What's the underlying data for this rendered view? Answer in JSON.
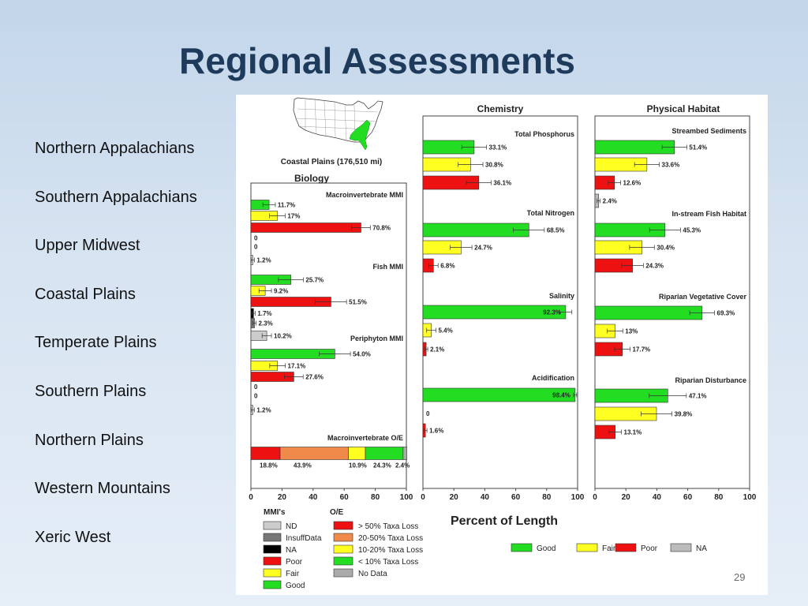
{
  "slide": {
    "title": "Regional Assessments",
    "slide_number": "29"
  },
  "regions": [
    "Northern Appalachians",
    "Southern Appalachians",
    "Upper Midwest",
    "Coastal Plains",
    "Temperate Plains",
    "Southern Plains",
    "Northern Plains",
    "Western Mountains",
    "Xeric West"
  ],
  "map": {
    "caption": "Coastal Plains (176,510 mi)",
    "highlight_color": "#22dd22"
  },
  "colors": {
    "good": "#22dd22",
    "fair": "#ffff22",
    "poor": "#ee1111",
    "na": "#bbbbbb",
    "nd": "#cccccc",
    "insuff": "#777777",
    "na_black": "#000000",
    "oe_loss50": "#ee1111",
    "oe_loss20_50": "#f08a4b",
    "oe_loss10_20": "#ffff22",
    "oe_loss10": "#22dd22",
    "oe_nodata": "#aaaaaa"
  },
  "chart_data": {
    "type": "bar",
    "xlabel": "Percent of Length",
    "xlim": [
      0,
      100
    ],
    "x_ticks": [
      "0",
      "20",
      "40",
      "60",
      "80",
      "100"
    ],
    "panels": [
      {
        "title": "Biology",
        "groups": [
          {
            "title": "Macroinvertebrate MMI",
            "bars": [
              {
                "cls": "good",
                "value": 11.7,
                "label": "11.7%",
                "err": 4
              },
              {
                "cls": "fair",
                "value": 17,
                "label": "17%",
                "err": 5
              },
              {
                "cls": "poor",
                "value": 70.8,
                "label": "70.8%",
                "err": 6
              },
              {
                "cls": "na_black",
                "value": 0,
                "label": "0"
              },
              {
                "cls": "na_black",
                "value": 0,
                "label": "0"
              },
              {
                "cls": "nd",
                "value": 1.2,
                "label": "1.2%",
                "err": 1
              }
            ]
          },
          {
            "title": "Fish MMI",
            "bars": [
              {
                "cls": "good",
                "value": 25.7,
                "label": "25.7%",
                "err": 8
              },
              {
                "cls": "fair",
                "value": 9.2,
                "label": "9.2%",
                "err": 4
              },
              {
                "cls": "poor",
                "value": 51.5,
                "label": "51.5%",
                "err": 10
              },
              {
                "cls": "na_black",
                "value": 1.7,
                "label": "1.7%",
                "err": 1
              },
              {
                "cls": "insuff",
                "value": 2.3,
                "label": "2.3%",
                "err": 1
              },
              {
                "cls": "nd",
                "value": 10.2,
                "label": "10.2%",
                "err": 3
              }
            ]
          },
          {
            "title": "Periphyton MMI",
            "bars": [
              {
                "cls": "good",
                "value": 54.0,
                "label": "54.0%",
                "err": 10
              },
              {
                "cls": "fair",
                "value": 17.1,
                "label": "17.1%",
                "err": 5
              },
              {
                "cls": "poor",
                "value": 27.6,
                "label": "27.6%",
                "err": 6
              },
              {
                "cls": "na_black",
                "value": 0,
                "label": "0"
              },
              {
                "cls": "na_black",
                "value": 0,
                "label": "0"
              },
              {
                "cls": "nd",
                "value": 1.2,
                "label": "1.2%",
                "err": 1
              }
            ]
          },
          {
            "title": "Macroinvertebrate O/E",
            "stacked": [
              {
                "cls": "oe_loss50",
                "value": 18.8,
                "label": "18.8%"
              },
              {
                "cls": "oe_loss20_50",
                "value": 43.9,
                "label": "43.9%"
              },
              {
                "cls": "oe_loss10_20",
                "value": 10.9,
                "label": "10.9%"
              },
              {
                "cls": "oe_loss10",
                "value": 24.3,
                "label": "24.3%"
              },
              {
                "cls": "oe_nodata",
                "value": 2.4,
                "label": "2.4%"
              }
            ]
          }
        ]
      },
      {
        "title": "Chemistry",
        "groups": [
          {
            "title": "Total Phosphorus",
            "bars": [
              {
                "cls": "good",
                "value": 33.1,
                "label": "33.1%",
                "err": 8
              },
              {
                "cls": "fair",
                "value": 30.8,
                "label": "30.8%",
                "err": 8
              },
              {
                "cls": "poor",
                "value": 36.1,
                "label": "36.1%",
                "err": 8
              }
            ]
          },
          {
            "title": "Total Nitrogen",
            "bars": [
              {
                "cls": "good",
                "value": 68.5,
                "label": "68.5%",
                "err": 10
              },
              {
                "cls": "fair",
                "value": 24.7,
                "label": "24.7%",
                "err": 7
              },
              {
                "cls": "poor",
                "value": 6.8,
                "label": "6.8%",
                "err": 3
              }
            ]
          },
          {
            "title": "Salinity",
            "bars": [
              {
                "cls": "good",
                "value": 92.3,
                "label": "92.3%",
                "err": 4,
                "label_inside": true
              },
              {
                "cls": "fair",
                "value": 5.4,
                "label": "5.4%",
                "err": 3
              },
              {
                "cls": "poor",
                "value": 2.1,
                "label": "2.1%",
                "err": 1
              }
            ]
          },
          {
            "title": "Acidification",
            "bars": [
              {
                "cls": "good",
                "value": 98.4,
                "label": "98.4%",
                "err": 1,
                "label_inside": true
              },
              {
                "cls": "fair",
                "value": 0,
                "label": "0"
              },
              {
                "cls": "poor",
                "value": 1.6,
                "label": "1.6%",
                "err": 1
              }
            ]
          }
        ]
      },
      {
        "title": "Physical Habitat",
        "groups": [
          {
            "title": "Streambed Sediments",
            "bars": [
              {
                "cls": "good",
                "value": 51.4,
                "label": "51.4%",
                "err": 8
              },
              {
                "cls": "fair",
                "value": 33.6,
                "label": "33.6%",
                "err": 8
              },
              {
                "cls": "poor",
                "value": 12.6,
                "label": "12.6%",
                "err": 4
              },
              {
                "cls": "na",
                "value": 2.4,
                "label": "2.4%",
                "err": 1
              }
            ]
          },
          {
            "title": "In-stream Fish Habitat",
            "bars": [
              {
                "cls": "good",
                "value": 45.3,
                "label": "45.3%",
                "err": 10
              },
              {
                "cls": "fair",
                "value": 30.4,
                "label": "30.4%",
                "err": 8
              },
              {
                "cls": "poor",
                "value": 24.3,
                "label": "24.3%",
                "err": 7
              }
            ]
          },
          {
            "title": "Riparian Vegetative Cover",
            "bars": [
              {
                "cls": "good",
                "value": 69.3,
                "label": "69.3%",
                "err": 8
              },
              {
                "cls": "fair",
                "value": 13,
                "label": "13%",
                "err": 5
              },
              {
                "cls": "poor",
                "value": 17.7,
                "label": "17.7%",
                "err": 5
              }
            ]
          },
          {
            "title": "Riparian Disturbance",
            "bars": [
              {
                "cls": "good",
                "value": 47.1,
                "label": "47.1%",
                "err": 12
              },
              {
                "cls": "fair",
                "value": 39.8,
                "label": "39.8%",
                "err": 10
              },
              {
                "cls": "poor",
                "value": 13.1,
                "label": "13.1%",
                "err": 4
              }
            ]
          }
        ]
      }
    ],
    "legend_mmi": {
      "title": "MMI's",
      "items": [
        {
          "cls": "nd",
          "label": "ND"
        },
        {
          "cls": "insuff",
          "label": "InsuffData"
        },
        {
          "cls": "na_black",
          "label": "NA"
        },
        {
          "cls": "poor",
          "label": "Poor"
        },
        {
          "cls": "fair",
          "label": "Fair"
        },
        {
          "cls": "good",
          "label": "Good"
        }
      ]
    },
    "legend_oe": {
      "title": "O/E",
      "items": [
        {
          "cls": "oe_loss50",
          "label": "> 50% Taxa Loss"
        },
        {
          "cls": "oe_loss20_50",
          "label": "20-50% Taxa Loss"
        },
        {
          "cls": "oe_loss10_20",
          "label": "10-20% Taxa Loss"
        },
        {
          "cls": "oe_loss10",
          "label": "< 10% Taxa Loss"
        },
        {
          "cls": "oe_nodata",
          "label": "No Data"
        }
      ]
    },
    "legend_condition": {
      "items": [
        {
          "cls": "good",
          "label": "Good"
        },
        {
          "cls": "fair",
          "label": "Fair"
        },
        {
          "cls": "poor",
          "label": "Poor"
        },
        {
          "cls": "na",
          "label": "NA"
        }
      ]
    }
  }
}
